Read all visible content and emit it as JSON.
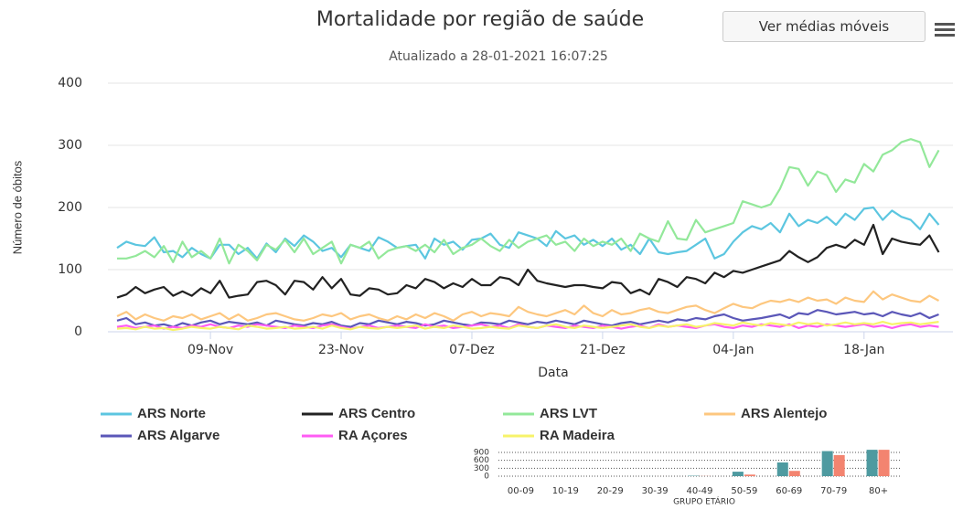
{
  "button": "Ver médias móveis",
  "chart_data": [
    {
      "type": "line",
      "title": "Mortalidade por região de saúde",
      "subtitle": "Atualizado a 28-01-2021 16:07:25",
      "xlabel": "Data",
      "ylabel": "Número de óbitos",
      "ylim": [
        0,
        400
      ],
      "yticks": [
        0,
        100,
        200,
        300,
        400
      ],
      "grid": true,
      "legend": "bottom",
      "categories": [
        null,
        null,
        null,
        null,
        null,
        null,
        null,
        null,
        null,
        null,
        "09-Nov",
        null,
        null,
        null,
        null,
        null,
        null,
        null,
        null,
        null,
        null,
        null,
        null,
        null,
        "23-Nov",
        null,
        null,
        null,
        null,
        null,
        null,
        null,
        null,
        null,
        null,
        null,
        null,
        null,
        "07-Dez",
        null,
        null,
        null,
        null,
        null,
        null,
        null,
        null,
        null,
        null,
        null,
        null,
        null,
        "21-Dez",
        null,
        null,
        null,
        null,
        null,
        null,
        null,
        null,
        null,
        null,
        null,
        null,
        null,
        "04-Jan",
        null,
        null,
        null,
        null,
        null,
        null,
        null,
        null,
        null,
        null,
        null,
        null,
        null,
        "18-Jan",
        null,
        null,
        null,
        null,
        null,
        null,
        null,
        null
      ],
      "series": [
        {
          "name": "ARS Norte",
          "color": "#5cc6e0",
          "values": [
            135,
            145,
            140,
            138,
            152,
            128,
            130,
            120,
            135,
            125,
            118,
            140,
            140,
            125,
            135,
            118,
            142,
            128,
            150,
            138,
            155,
            145,
            130,
            135,
            120,
            140,
            135,
            130,
            152,
            145,
            135,
            138,
            140,
            118,
            150,
            140,
            145,
            132,
            148,
            150,
            158,
            140,
            135,
            160,
            155,
            150,
            138,
            162,
            150,
            155,
            140,
            148,
            138,
            150,
            132,
            140,
            125,
            150,
            128,
            125,
            128,
            130,
            140,
            150,
            118,
            125,
            145,
            160,
            170,
            165,
            175,
            160,
            190,
            170,
            180,
            175,
            185,
            172,
            190,
            180,
            198,
            200,
            180,
            195,
            185,
            180,
            165,
            190,
            172
          ]
        },
        {
          "name": "ARS Centro",
          "color": "#222222",
          "values": [
            55,
            60,
            72,
            62,
            68,
            72,
            58,
            65,
            58,
            70,
            62,
            82,
            55,
            58,
            60,
            80,
            82,
            75,
            60,
            82,
            80,
            68,
            88,
            70,
            85,
            60,
            58,
            70,
            68,
            60,
            62,
            75,
            70,
            85,
            80,
            70,
            78,
            72,
            85,
            75,
            75,
            88,
            85,
            75,
            100,
            82,
            78,
            75,
            72,
            75,
            75,
            72,
            70,
            80,
            78,
            62,
            68,
            60,
            85,
            80,
            72,
            88,
            85,
            78,
            95,
            88,
            98,
            95,
            100,
            105,
            110,
            115,
            130,
            120,
            112,
            120,
            135,
            140,
            135,
            148,
            140,
            172,
            125,
            150,
            145,
            142,
            140,
            155,
            128
          ]
        },
        {
          "name": "ARS LVT",
          "color": "#93e89a",
          "values": [
            118,
            118,
            122,
            130,
            120,
            138,
            112,
            145,
            120,
            130,
            118,
            150,
            110,
            140,
            130,
            115,
            140,
            132,
            148,
            128,
            150,
            125,
            135,
            145,
            110,
            140,
            135,
            145,
            118,
            130,
            135,
            138,
            130,
            140,
            128,
            148,
            125,
            135,
            140,
            150,
            138,
            130,
            148,
            135,
            145,
            150,
            155,
            140,
            145,
            130,
            150,
            138,
            145,
            140,
            150,
            130,
            158,
            150,
            145,
            178,
            150,
            148,
            180,
            160,
            165,
            170,
            175,
            210,
            205,
            200,
            205,
            230,
            265,
            262,
            235,
            258,
            252,
            225,
            245,
            240,
            270,
            258,
            285,
            292,
            305,
            310,
            305,
            265,
            292
          ]
        },
        {
          "name": "ARS Alentejo",
          "color": "#fdc77f",
          "values": [
            25,
            32,
            20,
            28,
            22,
            18,
            25,
            22,
            28,
            20,
            25,
            30,
            20,
            28,
            18,
            22,
            28,
            30,
            25,
            20,
            18,
            22,
            28,
            25,
            30,
            20,
            25,
            28,
            22,
            18,
            25,
            20,
            28,
            22,
            30,
            25,
            18,
            28,
            32,
            25,
            30,
            28,
            25,
            40,
            32,
            28,
            25,
            30,
            35,
            28,
            42,
            30,
            25,
            35,
            28,
            30,
            35,
            38,
            32,
            30,
            35,
            40,
            42,
            35,
            30,
            38,
            45,
            40,
            38,
            45,
            50,
            48,
            52,
            48,
            55,
            50,
            52,
            45,
            55,
            50,
            48,
            65,
            52,
            60,
            55,
            50,
            48,
            58,
            50
          ]
        },
        {
          "name": "ARS Algarve",
          "color": "#5b57b8",
          "values": [
            18,
            22,
            12,
            15,
            10,
            12,
            8,
            14,
            10,
            15,
            18,
            12,
            16,
            14,
            12,
            15,
            10,
            18,
            15,
            12,
            10,
            14,
            12,
            16,
            10,
            8,
            14,
            12,
            18,
            15,
            12,
            16,
            14,
            10,
            12,
            18,
            15,
            12,
            10,
            15,
            14,
            12,
            18,
            15,
            12,
            16,
            14,
            18,
            15,
            12,
            18,
            15,
            12,
            10,
            14,
            16,
            12,
            15,
            18,
            15,
            20,
            18,
            22,
            20,
            25,
            28,
            22,
            18,
            20,
            22,
            25,
            28,
            22,
            30,
            28,
            35,
            32,
            28,
            30,
            32,
            28,
            30,
            25,
            32,
            28,
            25,
            30,
            22,
            28
          ]
        },
        {
          "name": "RA Açores",
          "color": "#ff5cf4",
          "values": [
            8,
            10,
            6,
            8,
            10,
            5,
            8,
            6,
            10,
            8,
            12,
            8,
            6,
            10,
            8,
            12,
            10,
            8,
            6,
            10,
            8,
            6,
            10,
            12,
            8,
            5,
            8,
            10,
            6,
            8,
            10,
            8,
            6,
            12,
            8,
            10,
            6,
            8,
            10,
            12,
            8,
            10,
            6,
            12,
            8,
            6,
            10,
            8,
            6,
            10,
            8,
            6,
            10,
            8,
            5,
            8,
            10,
            6,
            12,
            8,
            10,
            8,
            6,
            10,
            12,
            8,
            6,
            10,
            8,
            12,
            10,
            8,
            12,
            6,
            10,
            8,
            12,
            10,
            8,
            10,
            12,
            8,
            10,
            6,
            10,
            12,
            8,
            10,
            8
          ]
        },
        {
          "name": "RA Madeira",
          "color": "#f7f36a",
          "values": [
            5,
            6,
            4,
            8,
            5,
            6,
            3,
            5,
            8,
            6,
            5,
            8,
            6,
            4,
            10,
            8,
            5,
            6,
            8,
            5,
            6,
            8,
            5,
            10,
            6,
            4,
            8,
            6,
            5,
            8,
            6,
            8,
            10,
            5,
            8,
            6,
            10,
            8,
            5,
            6,
            8,
            6,
            5,
            10,
            8,
            6,
            10,
            12,
            8,
            6,
            10,
            8,
            6,
            8,
            10,
            12,
            8,
            6,
            10,
            8,
            10,
            12,
            8,
            10,
            14,
            12,
            10,
            15,
            12,
            10,
            14,
            12,
            10,
            15,
            12,
            14,
            10,
            12,
            15,
            12,
            14,
            12,
            16,
            12,
            14,
            15,
            12,
            14,
            16
          ]
        }
      ]
    },
    {
      "type": "bar",
      "xlabel": "GRUPO ETÁRIO",
      "ylim": [
        0,
        900
      ],
      "yticks": [
        0,
        300,
        600,
        900
      ],
      "grid": true,
      "categories": [
        "00-09",
        "10-19",
        "20-29",
        "30-39",
        "40-49",
        "50-59",
        "60-69",
        "70-79",
        "80+"
      ],
      "series": [
        {
          "color": "#4e9aa0",
          "values": [
            0,
            0,
            0,
            2,
            15,
            170,
            520,
            950,
            1000
          ]
        },
        {
          "color": "#f38470",
          "values": [
            0,
            0,
            0,
            1,
            5,
            60,
            200,
            800,
            1000
          ]
        }
      ]
    }
  ]
}
